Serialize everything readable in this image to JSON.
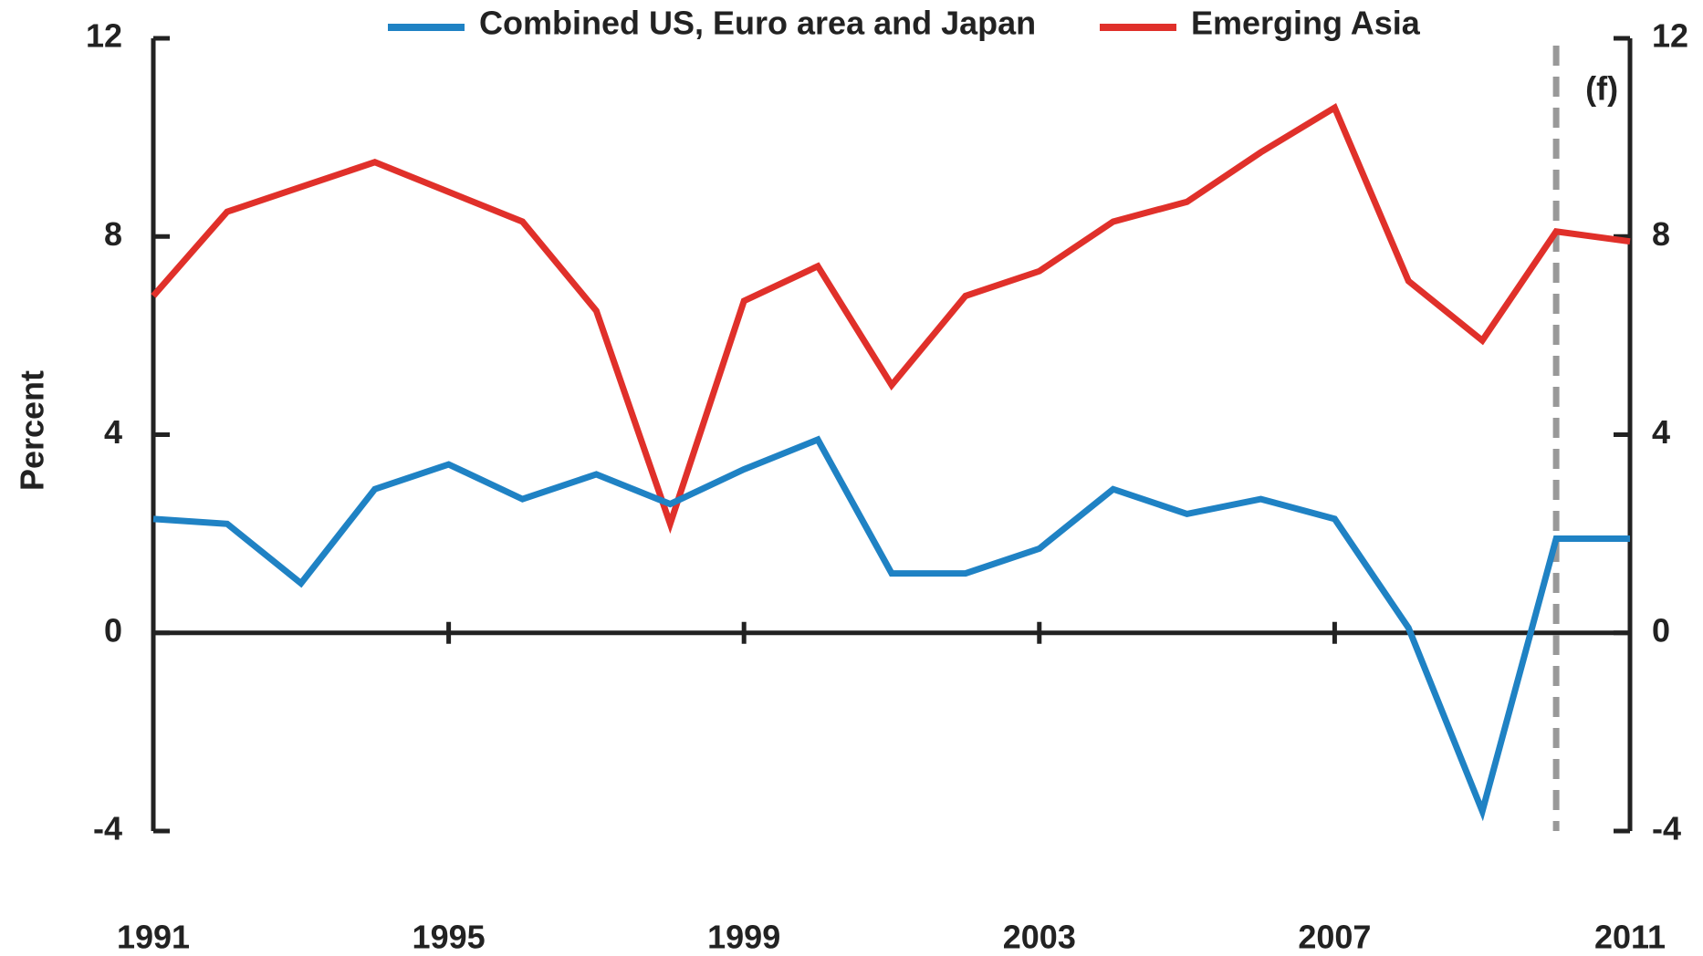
{
  "chart_data": {
    "type": "line",
    "ylabel": "Percent",
    "x": [
      1991,
      1992,
      1993,
      1994,
      1995,
      1996,
      1997,
      1998,
      1999,
      2000,
      2001,
      2002,
      2003,
      2004,
      2005,
      2006,
      2007,
      2008,
      2009,
      2010,
      2011
    ],
    "series": [
      {
        "name": "Combined US, Euro area and Japan",
        "color": "#1f82c4",
        "values": [
          2.3,
          2.2,
          1.0,
          2.9,
          3.4,
          2.7,
          3.2,
          2.6,
          3.3,
          3.9,
          1.2,
          1.2,
          1.7,
          2.9,
          2.4,
          2.7,
          2.3,
          0.1,
          -3.6,
          1.9,
          1.9
        ]
      },
      {
        "name": "Emerging Asia",
        "color": "#e0302a",
        "values": [
          6.8,
          8.5,
          9.0,
          9.5,
          8.9,
          8.3,
          6.5,
          2.2,
          6.7,
          7.4,
          5.0,
          6.8,
          7.3,
          8.3,
          8.7,
          9.7,
          10.6,
          7.1,
          5.9,
          8.1,
          7.9
        ]
      }
    ],
    "xlim": [
      1991,
      2011
    ],
    "xticks": [
      1991,
      1995,
      1999,
      2003,
      2007,
      2011
    ],
    "ylim": [
      -4,
      12
    ],
    "yticks": [
      -4,
      0,
      4,
      8,
      12
    ],
    "y2lim": [
      -4,
      12
    ],
    "y2ticks": [
      -4,
      0,
      4,
      8,
      12
    ],
    "forecast": {
      "x": 2010,
      "label": "(f)"
    },
    "legend": "top"
  }
}
